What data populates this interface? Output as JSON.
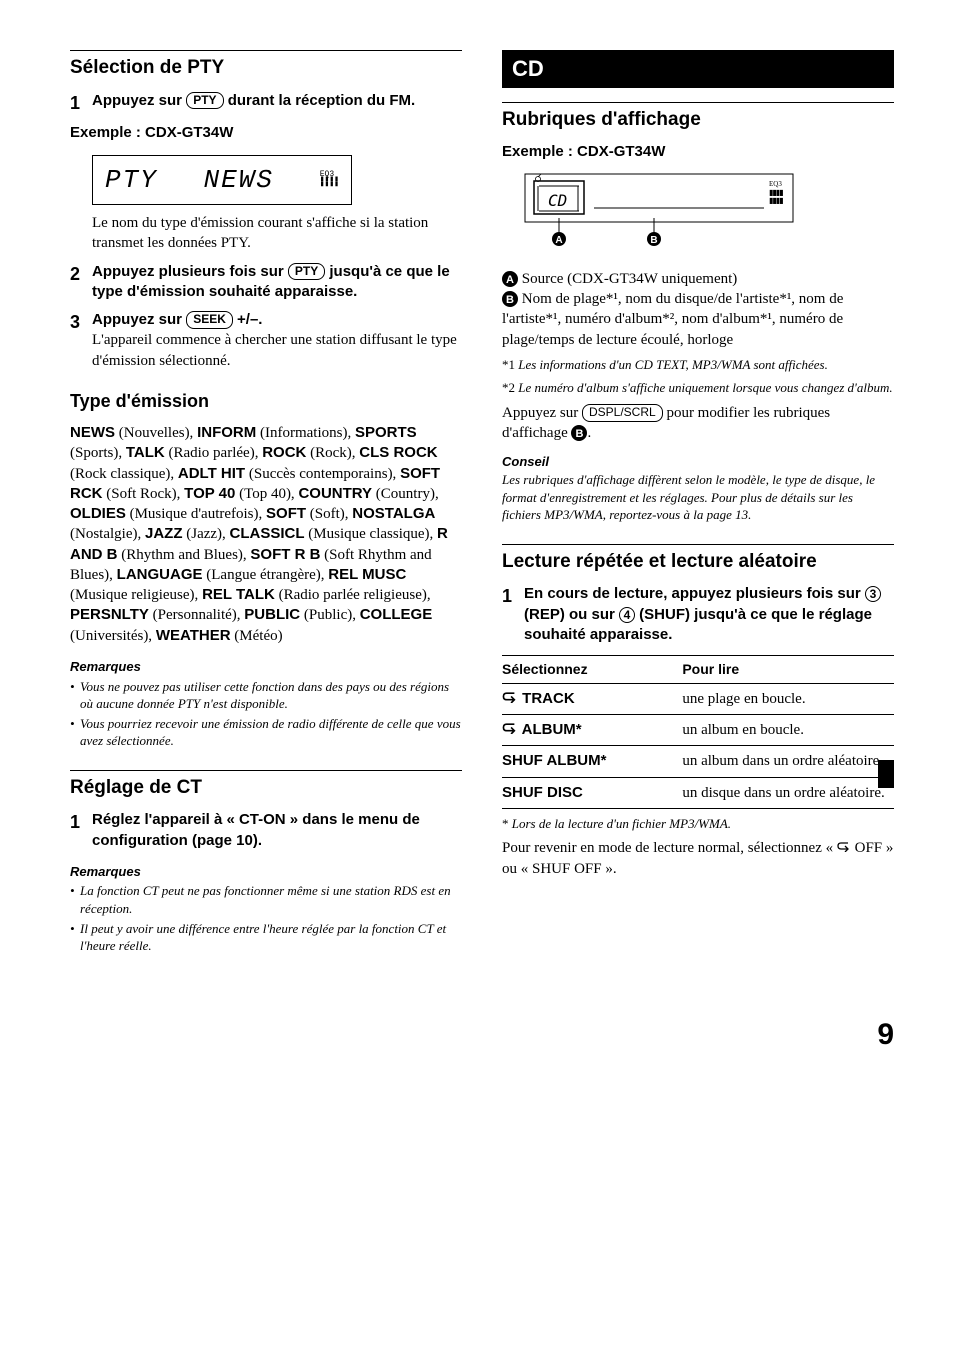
{
  "page_number": "9",
  "left": {
    "section1_title": "Sélection de PTY",
    "step1_num": "1",
    "step1_pre": "Appuyez sur ",
    "step1_btn": "PTY",
    "step1_post": " durant la réception du FM.",
    "example_label": "Exemple : CDX-GT34W",
    "lcd_left": "PTY",
    "lcd_right": "NEWS",
    "lcd_eq_label": "EQ3",
    "step1_after": "Le nom du type d'émission courant s'affiche si la station transmet les données PTY.",
    "step2_num": "2",
    "step2_pre": "Appuyez plusieurs fois sur ",
    "step2_btn": "PTY",
    "step2_post": " jusqu'à ce que le type d'émission souhaité apparaisse.",
    "step3_num": "3",
    "step3_pre": "Appuyez sur ",
    "step3_btn": "SEEK",
    "step3_post": " +/–.",
    "step3_desc": "L'appareil commence à chercher une station diffusant le type d'émission sélectionné.",
    "types_title": "Type d'émission",
    "types": [
      {
        "code": "NEWS",
        "label": " (Nouvelles), "
      },
      {
        "code": "INFORM",
        "label": " (Informations), "
      },
      {
        "code": "SPORTS",
        "label": " (Sports), "
      },
      {
        "code": "TALK",
        "label": " (Radio parlée), "
      },
      {
        "code": "ROCK",
        "label": " (Rock), "
      },
      {
        "code": "CLS ROCK",
        "label": " (Rock classique), "
      },
      {
        "code": "ADLT HIT",
        "label": " (Succès contemporains), "
      },
      {
        "code": "SOFT RCK",
        "label": " (Soft Rock), "
      },
      {
        "code": "TOP 40",
        "label": " (Top 40), "
      },
      {
        "code": "COUNTRY",
        "label": " (Country), "
      },
      {
        "code": "OLDIES",
        "label": " (Musique d'autrefois), "
      },
      {
        "code": "SOFT",
        "label": " (Soft), "
      },
      {
        "code": "NOSTALGA",
        "label": " (Nostalgie), "
      },
      {
        "code": "JAZZ",
        "label": " (Jazz), "
      },
      {
        "code": "CLASSICL",
        "label": " (Musique classique), "
      },
      {
        "code": "R AND B",
        "label": " (Rhythm and Blues), "
      },
      {
        "code": "SOFT R B",
        "label": " (Soft Rhythm and Blues), "
      },
      {
        "code": "LANGUAGE",
        "label": " (Langue étrangère), "
      },
      {
        "code": "REL MUSC",
        "label": " (Musique religieuse), "
      },
      {
        "code": "REL TALK",
        "label": " (Radio parlée religieuse), "
      },
      {
        "code": "PERSNLTY",
        "label": " (Personnalité), "
      },
      {
        "code": "PUBLIC",
        "label": " (Public), "
      },
      {
        "code": "COLLEGE",
        "label": " (Universités), "
      },
      {
        "code": "WEATHER",
        "label": " (Météo)"
      }
    ],
    "remarques": "Remarques",
    "notes1": [
      "Vous ne pouvez pas utiliser cette fonction dans des pays ou des régions où aucune donnée PTY n'est disponible.",
      "Vous pourriez recevoir une émission de radio différente de celle que vous avez sélectionnée."
    ],
    "section2_title": "Réglage de CT",
    "ct_step_num": "1",
    "ct_step": "Réglez l'appareil à « CT-ON » dans le menu de configuration (page 10).",
    "notes2": [
      "La fonction CT peut ne pas fonctionner même si une station RDS est en réception.",
      "Il peut y avoir une différence entre l'heure réglée par la fonction CT et l'heure réelle."
    ]
  },
  "right": {
    "cd_header": "CD",
    "section1_title": "Rubriques d'affichage",
    "example_label": "Exemple : CDX-GT34W",
    "badge_a": "A",
    "badge_b": "B",
    "item_a": " Source (CDX-GT34W uniquement)",
    "item_b": " Nom de plage*¹, nom du disque/de l'artiste*¹, nom de l'artiste*¹, numéro d'album*², nom d'album*¹, numéro de plage/temps de lecture écoulé, horloge",
    "fn1_lead": "*1 ",
    "fn1": "Les informations d'un CD TEXT, MP3/WMA sont affichées.",
    "fn2_lead": "*2 ",
    "fn2": "Le numéro d'album s'affiche uniquement lorsque vous changez d'album.",
    "display_change_pre": "Appuyez sur ",
    "display_change_btn": "DSPL/SCRL",
    "display_change_post1": " pour modifier les rubriques d'affichage ",
    "display_change_post2": ".",
    "conseil": "Conseil",
    "conseil_body": "Les rubriques d'affichage diffèrent selon le modèle, le type de disque, le format d'enregistrement et les réglages. Pour plus de détails sur les fichiers MP3/WMA, reportez-vous à la page 13.",
    "section2_title": "Lecture répétée et lecture aléatoire",
    "play_step_num": "1",
    "play_step_pre": "En cours de lecture, appuyez plusieurs fois sur ",
    "play_step_circ3": "3",
    "play_step_mid": " (REP) ou sur ",
    "play_step_circ4": "4",
    "play_step_post": " (SHUF) jusqu'à ce que le réglage souhaité apparaisse.",
    "table": {
      "col1": "Sélectionnez",
      "col2": "Pour lire",
      "rows": [
        {
          "icon": true,
          "mode": " TRACK",
          "desc": "une plage en boucle."
        },
        {
          "icon": true,
          "mode": " ALBUM*",
          "desc": "un album en boucle."
        },
        {
          "icon": false,
          "mode": "SHUF ALBUM*",
          "desc": "un album dans un ordre aléatoire."
        },
        {
          "icon": false,
          "mode": "SHUF DISC",
          "desc": "un disque dans un ordre aléatoire."
        }
      ],
      "footnote_lead": "* ",
      "footnote": "Lors de la lecture d'un fichier MP3/WMA."
    },
    "return_text_pre": "Pour revenir en mode de lecture normal, sélectionnez « ",
    "return_text_mid": " OFF » ou « SHUF OFF ».",
    "repeat_icon_svg": "⊂"
  }
}
